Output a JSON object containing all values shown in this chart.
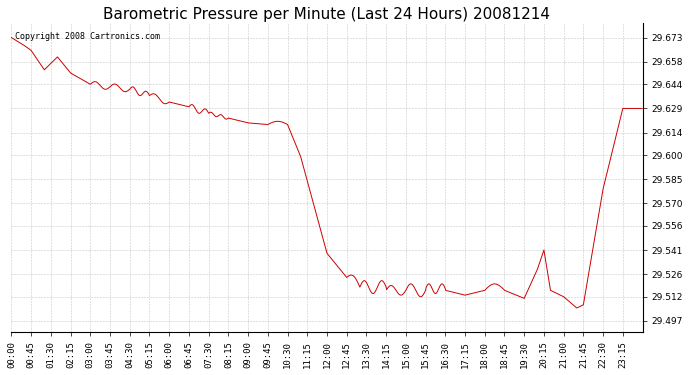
{
  "title": "Barometric Pressure per Minute (Last 24 Hours) 20081214",
  "copyright_text": "Copyright 2008 Cartronics.com",
  "line_color": "#cc0000",
  "background_color": "#ffffff",
  "grid_color": "#c8c8c8",
  "yticks": [
    29.497,
    29.512,
    29.526,
    29.541,
    29.556,
    29.57,
    29.585,
    29.6,
    29.614,
    29.629,
    29.644,
    29.658,
    29.673
  ],
  "ylim": [
    29.49,
    29.682
  ],
  "xtick_labels": [
    "00:00",
    "00:45",
    "01:30",
    "02:15",
    "03:00",
    "03:45",
    "04:30",
    "05:15",
    "06:00",
    "06:45",
    "07:30",
    "08:15",
    "09:00",
    "09:45",
    "10:30",
    "11:15",
    "12:00",
    "12:45",
    "13:30",
    "14:15",
    "15:00",
    "15:45",
    "16:30",
    "17:15",
    "18:00",
    "18:45",
    "19:30",
    "20:15",
    "21:00",
    "21:45",
    "22:30",
    "23:15"
  ],
  "key_times": [
    0,
    45,
    90,
    135,
    180,
    225,
    270,
    315,
    360,
    405,
    450,
    495,
    540,
    585,
    630,
    675,
    720,
    765,
    810,
    855,
    900,
    945,
    990,
    1035,
    1080,
    1125,
    1170,
    1215,
    1260,
    1305,
    1350,
    1395
  ],
  "title_fontsize": 11,
  "tick_fontsize": 6.5,
  "copyright_fontsize": 6
}
